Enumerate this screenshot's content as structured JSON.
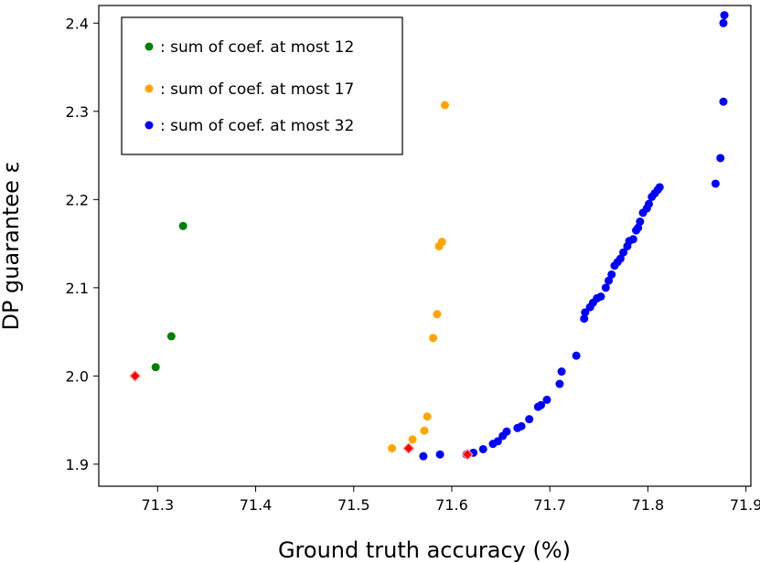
{
  "chart_data": {
    "type": "scatter",
    "xlabel": "Ground truth accuracy (%)",
    "ylabel": "DP guarantee ε",
    "xlim": [
      71.24,
      71.905
    ],
    "ylim": [
      1.875,
      2.42
    ],
    "xticks": [
      "71.3",
      "71.4",
      "71.5",
      "71.6",
      "71.7",
      "71.8",
      "71.9"
    ],
    "xtick_values": [
      71.3,
      71.4,
      71.5,
      71.6,
      71.7,
      71.8,
      71.9
    ],
    "yticks": [
      "1.9",
      "2.0",
      "2.1",
      "2.2",
      "2.3",
      "2.4"
    ],
    "ytick_values": [
      1.9,
      2.0,
      2.1,
      2.2,
      2.3,
      2.4
    ],
    "grid": false,
    "legend_position": "top-left",
    "series": [
      {
        "name": ": sum of coef. at most 12",
        "color": "#008000",
        "points": [
          [
            71.298,
            2.01
          ],
          [
            71.314,
            2.045
          ],
          [
            71.326,
            2.17
          ]
        ]
      },
      {
        "name": ": sum of coef. at most 17",
        "color": "#FFA500",
        "points": [
          [
            71.539,
            1.918
          ],
          [
            71.56,
            1.928
          ],
          [
            71.572,
            1.938
          ],
          [
            71.575,
            1.954
          ],
          [
            71.581,
            2.043
          ],
          [
            71.585,
            2.07
          ],
          [
            71.587,
            2.147
          ],
          [
            71.59,
            2.152
          ],
          [
            71.593,
            2.307
          ]
        ]
      },
      {
        "name": ": sum of coef. at most 32",
        "color": "#0000FF",
        "points": [
          [
            71.571,
            1.909
          ],
          [
            71.588,
            1.911
          ],
          [
            71.615,
            1.911
          ],
          [
            71.622,
            1.913
          ],
          [
            71.632,
            1.917
          ],
          [
            71.642,
            1.923
          ],
          [
            71.647,
            1.926
          ],
          [
            71.652,
            1.932
          ],
          [
            71.656,
            1.937
          ],
          [
            71.667,
            1.941
          ],
          [
            71.671,
            1.943
          ],
          [
            71.679,
            1.951
          ],
          [
            71.688,
            1.965
          ],
          [
            71.691,
            1.967
          ],
          [
            71.697,
            1.973
          ],
          [
            71.71,
            1.991
          ],
          [
            71.712,
            2.005
          ],
          [
            71.727,
            2.023
          ],
          [
            71.735,
            2.065
          ],
          [
            71.736,
            2.072
          ],
          [
            71.741,
            2.078
          ],
          [
            71.744,
            2.083
          ],
          [
            71.748,
            2.088
          ],
          [
            71.752,
            2.09
          ],
          [
            71.757,
            2.1
          ],
          [
            71.76,
            2.108
          ],
          [
            71.763,
            2.115
          ],
          [
            71.766,
            2.125
          ],
          [
            71.769,
            2.129
          ],
          [
            71.772,
            2.133
          ],
          [
            71.775,
            2.14
          ],
          [
            71.779,
            2.147
          ],
          [
            71.781,
            2.153
          ],
          [
            71.785,
            2.155
          ],
          [
            71.788,
            2.165
          ],
          [
            71.79,
            2.168
          ],
          [
            71.792,
            2.175
          ],
          [
            71.795,
            2.185
          ],
          [
            71.799,
            2.19
          ],
          [
            71.801,
            2.195
          ],
          [
            71.804,
            2.203
          ],
          [
            71.807,
            2.207
          ],
          [
            71.81,
            2.211
          ],
          [
            71.812,
            2.214
          ],
          [
            71.869,
            2.218
          ],
          [
            71.874,
            2.247
          ],
          [
            71.877,
            2.311
          ],
          [
            71.877,
            2.4
          ],
          [
            71.878,
            2.409
          ]
        ]
      }
    ],
    "highlights": {
      "marker": "diamond",
      "color": "#FF0000",
      "points": [
        [
          71.277,
          2.0
        ],
        [
          71.556,
          1.918
        ],
        [
          71.616,
          1.911
        ]
      ]
    }
  }
}
